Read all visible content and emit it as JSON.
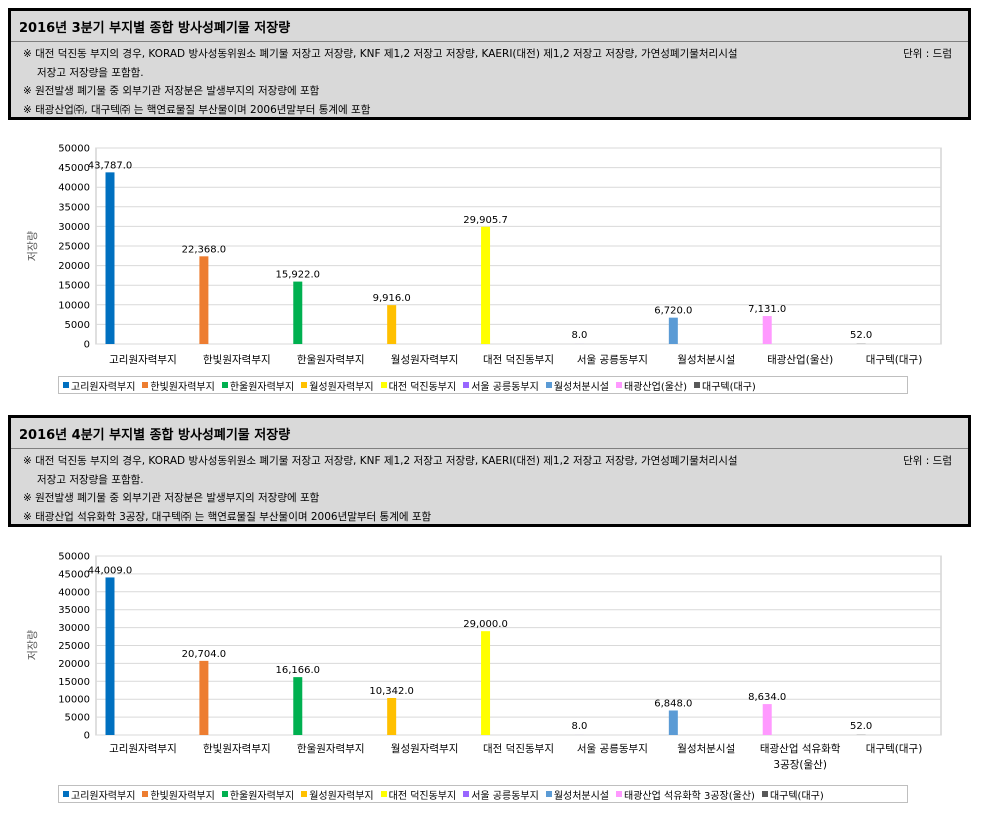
{
  "panels": [
    {
      "title": "2016년 3분기 부지별 종합 방사성폐기물 저장량",
      "unit": "단위 : 드럼",
      "notes": [
        "※ 대전 덕진동 부지의 경우, KORAD 방사성동위원소 폐기물 저장고 저장량, KNF 제1,2 저장고 저장량, KAERI(대전) 제1,2 저장고 저장량, 가연성폐기물처리시설",
        "저장고 저장량을 포함함.",
        "※ 원전발생 폐기물 중 외부기관 저장분은 발생부지의 저장량에 포함",
        "※ 태광산업㈜, 대구텍㈜ 는 핵연료물질 부산물이며 2006년말부터 통계에 포함"
      ]
    },
    {
      "title": "2016년 4분기 부지별 종합 방사성폐기물 저장량",
      "unit": "단위 : 드럼",
      "notes": [
        "※ 대전 덕진동 부지의 경우, KORAD 방사성동위원소 폐기물 저장고 저장량, KNF 제1,2 저장고 저장량, KAERI(대전) 제1,2 저장고 저장량, 가연성폐기물처리시설",
        "저장고 저장량을 포함함.",
        "※ 원전발생 폐기물 중 외부기관 저장분은 발생부지의 저장량에 포함",
        "※ 태광산업 석유화학 3공장, 대구텍㈜ 는 핵연료물질 부산물이며 2006년말부터 통계에 포함"
      ]
    }
  ],
  "chart_data": [
    {
      "type": "bar",
      "ylabel": "저장량",
      "ylim": [
        0,
        50000
      ],
      "yticks": [
        "0",
        "5000",
        "10000",
        "15000",
        "20000",
        "25000",
        "30000",
        "35000",
        "40000",
        "45000",
        "50000"
      ],
      "categories": [
        "고리원자력부지",
        "한빛원자력부지",
        "한울원자력부지",
        "월성원자력부지",
        "대전 덕진동부지",
        "서울 공릉동부지",
        "월성처분시설",
        "태광산업(울산)",
        "대구텍(대구)"
      ],
      "values": [
        43787,
        22368,
        15922,
        9916,
        29905.7,
        8,
        6720,
        7131,
        52
      ],
      "data_labels": [
        "43,787.0",
        "22,368.0",
        "15,922.0",
        "9,916.0",
        "29,905.7",
        "8.0",
        "6,720.0",
        "7,131.0",
        "52.0"
      ],
      "legend": [
        "고리원자력부지",
        "한빛원자력부지",
        "한울원자력부지",
        "월성원자력부지",
        "대전 덕진동부지",
        "서울 공릉동부지",
        "월성처분시설",
        "태광산업(울산)",
        "대구텍(대구)"
      ],
      "colors": [
        "#0070c0",
        "#ed7d31",
        "#00b050",
        "#ffc000",
        "#ffff00",
        "#9966ff",
        "#5b9bd5",
        "#ff99ff",
        "#595959"
      ],
      "legend_placement": "bottom",
      "grid": true
    },
    {
      "type": "bar",
      "ylabel": "저장량",
      "ylim": [
        0,
        50000
      ],
      "yticks": [
        "0",
        "5000",
        "10000",
        "15000",
        "20000",
        "25000",
        "30000",
        "35000",
        "40000",
        "45000",
        "50000"
      ],
      "categories": [
        "고리원자력부지",
        "한빛원자력부지",
        "한울원자력부지",
        "월성원자력부지",
        "대전 덕진동부지",
        "서울 공릉동부지",
        "월성처분시설",
        "태광산업 석유화학 3공장(울산)",
        "대구텍(대구)"
      ],
      "values": [
        44009,
        20704,
        16166,
        10342,
        29000,
        8,
        6848,
        8634,
        52
      ],
      "data_labels": [
        "44,009.0",
        "20,704.0",
        "16,166.0",
        "10,342.0",
        "29,000.0",
        "8.0",
        "6,848.0",
        "8,634.0",
        "52.0"
      ],
      "legend": [
        "고리원자력부지",
        "한빛원자력부지",
        "한울원자력부지",
        "월성원자력부지",
        "대전 덕진동부지",
        "서울 공릉동부지",
        "월성처분시설",
        "태광산업 석유화학 3공장(울산)",
        "대구텍(대구)"
      ],
      "colors": [
        "#0070c0",
        "#ed7d31",
        "#00b050",
        "#ffc000",
        "#ffff00",
        "#9966ff",
        "#5b9bd5",
        "#ff99ff",
        "#595959"
      ],
      "legend_placement": "bottom",
      "grid": true
    }
  ]
}
